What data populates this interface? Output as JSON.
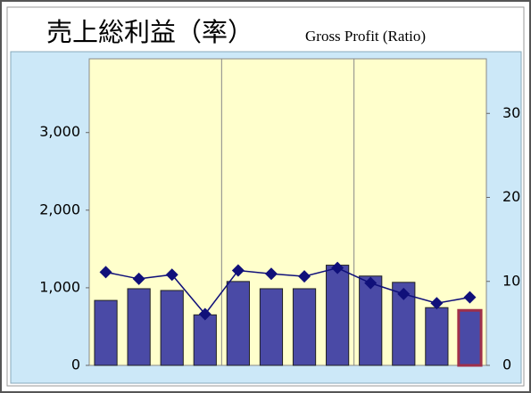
{
  "chart_data": {
    "type": "bar_line",
    "title": "売上総利益（率）",
    "subtitle": "Gross Profit (Ratio)",
    "categories": [
      null,
      null,
      null,
      null,
      null,
      null,
      null,
      null,
      null,
      null,
      null,
      null
    ],
    "series": [
      {
        "type": "bar",
        "color": "#4a4aa6",
        "values": [
          837,
          988,
          965,
          651,
          1081,
          988,
          988,
          1291,
          1151,
          1070,
          744,
          709
        ]
      },
      {
        "type": "line",
        "axis": "y2",
        "color": "#10107a",
        "values": [
          11.1,
          10.3,
          10.8,
          6.1,
          11.3,
          10.9,
          10.6,
          11.6,
          9.8,
          8.5,
          7.4,
          8.1
        ]
      }
    ],
    "highlight": {
      "index": 11,
      "color": "#a0304a"
    },
    "ylim": [
      0,
      3950
    ],
    "yticks": [
      0,
      {
        "value": 1000,
        "label": "1,000"
      },
      {
        "value": 2000,
        "label": "2,000"
      },
      {
        "value": 3000,
        "label": "3,000"
      }
    ],
    "y2lim": [
      0,
      36.5
    ],
    "y2ticks": [
      0,
      10,
      20,
      30
    ],
    "plot_background": "#ffffcc",
    "panel_background": "#cce8f8"
  }
}
